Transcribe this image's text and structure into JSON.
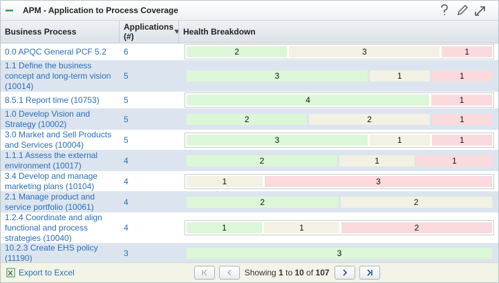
{
  "title": "APM - Application to Process Coverage",
  "table": {
    "columns": [
      "Business Process",
      "Applications (#)",
      "Health Breakdown"
    ],
    "rows": [
      {
        "process": "0.0 APQC General PCF 5.2",
        "applications": 6,
        "health": [
          {
            "color": "#dcf7d8",
            "value": 2
          },
          {
            "color": "#f2f1e4",
            "value": 3
          },
          {
            "color": "#fbdadd",
            "value": 1
          }
        ]
      },
      {
        "process": "1.1 Define the business concept and long-term vision (10014)",
        "applications": 5,
        "health": [
          {
            "color": "#dcf7d8",
            "value": 3
          },
          {
            "color": "#f2f1e4",
            "value": 1
          },
          {
            "color": "#fbdadd",
            "value": 1
          }
        ]
      },
      {
        "process": "8.5.1 Report time (10753)",
        "applications": 5,
        "health": [
          {
            "color": "#dcf7d8",
            "value": 4
          },
          {
            "color": "#fbdadd",
            "value": 1
          }
        ]
      },
      {
        "process": "1.0 Develop Vision and Strategy (10002)",
        "applications": 5,
        "health": [
          {
            "color": "#dcf7d8",
            "value": 2
          },
          {
            "color": "#f2f1e4",
            "value": 2
          },
          {
            "color": "#fbdadd",
            "value": 1
          }
        ]
      },
      {
        "process": "3.0 Market and Sell Products and Services (10004)",
        "applications": 5,
        "health": [
          {
            "color": "#dcf7d8",
            "value": 3
          },
          {
            "color": "#f2f1e4",
            "value": 1
          },
          {
            "color": "#fbdadd",
            "value": 1
          }
        ]
      },
      {
        "process": "1.1.1 Assess the external environment (10017)",
        "applications": 4,
        "health": [
          {
            "color": "#dcf7d8",
            "value": 2
          },
          {
            "color": "#f2f1e4",
            "value": 1
          },
          {
            "color": "#fbdadd",
            "value": 1
          }
        ]
      },
      {
        "process": "3.4 Develop and manage marketing plans (10104)",
        "applications": 4,
        "health": [
          {
            "color": "#f2f1e4",
            "value": 1
          },
          {
            "color": "#fbdadd",
            "value": 3
          }
        ]
      },
      {
        "process": "2.1 Manage product and service portfolio (10061)",
        "applications": 4,
        "health": [
          {
            "color": "#dcf7d8",
            "value": 2
          },
          {
            "color": "#f2f1e4",
            "value": 2
          }
        ]
      },
      {
        "process": "1.2.4 Coordinate and align functional and process strategies (10040)",
        "applications": 4,
        "health": [
          {
            "color": "#dcf7d8",
            "value": 1
          },
          {
            "color": "#f2f1e4",
            "value": 1
          },
          {
            "color": "#fbdadd",
            "value": 2
          }
        ]
      },
      {
        "process": "10.2.3 Create EHS policy (11190)",
        "applications": 3,
        "health": [
          {
            "color": "#dcf7d8",
            "value": 3
          }
        ]
      }
    ]
  },
  "footer": {
    "export": "Export to Excel",
    "showing": "Showing",
    "from": 1,
    "to_word": "to",
    "to": 10,
    "of_word": "of",
    "total": 107
  }
}
